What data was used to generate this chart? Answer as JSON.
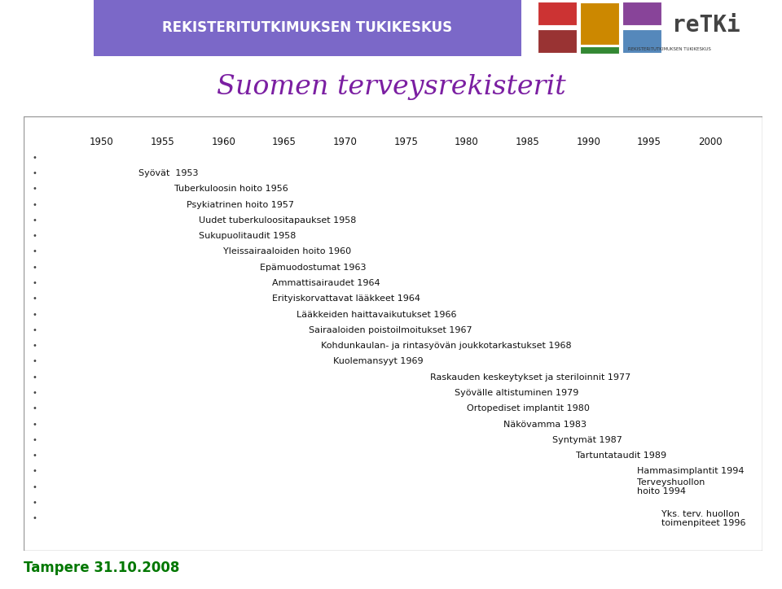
{
  "title": "Suomen terveysrekisterit",
  "header_text": "REKISTERITUTKIMUKSEN TUKIKESKUS",
  "footer_text": "Tampere 31.10.2008",
  "bg_color": "#EAE4F0",
  "outer_bg": "#FFFFFF",
  "header_bg": "#7B68C8",
  "title_color": "#7B1FA2",
  "text_color": "#111111",
  "timeline_years": [
    1950,
    1955,
    1960,
    1965,
    1970,
    1975,
    1980,
    1985,
    1990,
    1995,
    2000
  ],
  "year_start": 1946,
  "year_end": 2004,
  "entries": [
    {
      "year": 1953,
      "label": "Syövät  1953",
      "row": 2
    },
    {
      "year": 1956,
      "label": "Tuberkuloosin hoito 1956",
      "row": 3
    },
    {
      "year": 1957,
      "label": "Psykiatrinen hoito 1957",
      "row": 4
    },
    {
      "year": 1958,
      "label": "Uudet tuberkuloositapaukset 1958",
      "row": 5
    },
    {
      "year": 1958,
      "label": "Sukupuolitaudit 1958",
      "row": 6
    },
    {
      "year": 1960,
      "label": "Yleissairaaloiden hoito 1960",
      "row": 7
    },
    {
      "year": 1963,
      "label": "Epämuodostumat 1963",
      "row": 8
    },
    {
      "year": 1964,
      "label": "Ammattisairaudet 1964",
      "row": 9
    },
    {
      "year": 1964,
      "label": "Erityiskorvattavat lääkkeet 1964",
      "row": 10
    },
    {
      "year": 1966,
      "label": "Lääkkeiden haittavaikutukset 1966",
      "row": 11
    },
    {
      "year": 1967,
      "label": "Sairaaloiden poistoilmoitukset 1967",
      "row": 12
    },
    {
      "year": 1968,
      "label": "Kohdunkaulan- ja rintasyövän joukkotarkastukset 1968",
      "row": 13
    },
    {
      "year": 1969,
      "label": "Kuolemansyyt 1969",
      "row": 14
    },
    {
      "year": 1977,
      "label": "Raskauden keskeytykset ja steriloinnit 1977",
      "row": 15
    },
    {
      "year": 1979,
      "label": "Syövälle altistuminen 1979",
      "row": 16
    },
    {
      "year": 1980,
      "label": "Ortopediset implantit 1980",
      "row": 17
    },
    {
      "year": 1983,
      "label": "Näkövamma 1983",
      "row": 18
    },
    {
      "year": 1987,
      "label": "Syntymät 1987",
      "row": 19
    },
    {
      "year": 1989,
      "label": "Tartuntataudit 1989",
      "row": 20
    },
    {
      "year": 1994,
      "label": "Hammasimplantit 1994",
      "row": 21
    },
    {
      "year": 1994,
      "label": "Terveyshuollon\nhoito 1994",
      "row": 22
    },
    {
      "year": 1996,
      "label": "Yks. terv. huollon\ntoimenpiteet 1996",
      "row": 24
    }
  ],
  "bullet_rows_with_no_text": [
    1,
    23
  ],
  "total_rows": 26
}
